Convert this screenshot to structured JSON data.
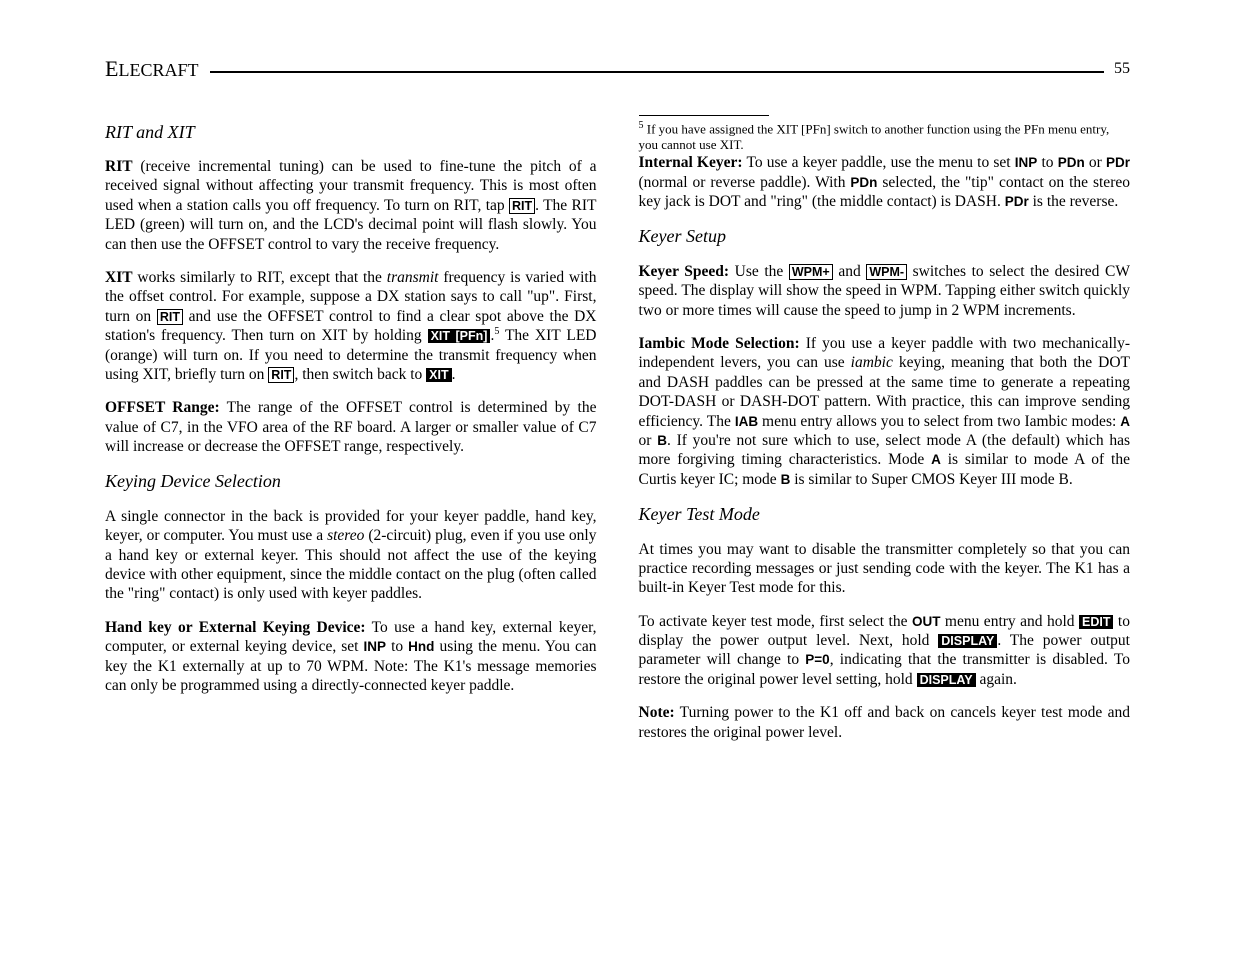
{
  "header": {
    "brand_first": "E",
    "brand_rest": "LECRAFT",
    "page": "55"
  },
  "left": {
    "title1": "RIT and XIT",
    "p1a": "RIT",
    "p1b": " (receive incremental tuning) can be used to fine-tune the pitch of a received signal without affecting your transmit frequency. This is most often used when a station calls you off frequency. To turn on RIT, tap ",
    "p1btn": "RIT",
    "p1c": ". The RIT LED (green) will turn on, and the LCD's decimal point will flash slowly. You can then use the OFFSET control to vary the receive frequency.",
    "p2a": "XIT",
    "p2b": " works similarly to RIT, except that the ",
    "p2c": "transmit",
    "p2d": " frequency is varied with the offset control. For example, suppose a DX station says to call \"up\". First, turn on ",
    "p2btn1": "RIT",
    "p2e": " and use the OFFSET control to find a clear spot above the DX station's frequency. Then turn on XIT by holding ",
    "p2btn2": "XIT [PFn]",
    "p2f": ".",
    "p2sup": "5",
    "p2g": " The XIT LED (orange) will turn on. If you need to determine the transmit frequency when using XIT, briefly turn on ",
    "p2btn3": "RIT",
    "p2h": ", then switch back to ",
    "p2btn4": "XIT",
    "p2i": ".",
    "p3a": "OFFSET Range:",
    "p3b": " The range of the OFFSET control is determined by the value of C7, in the VFO area of the RF board. A larger or smaller value of C7 will increase or decrease the OFFSET range, respectively.",
    "title2": "Keying Device Selection",
    "p4a": "A single connector in the back is provided for your keyer paddle, hand key, keyer, or computer. You must use a ",
    "p4b": "stereo",
    "p4c": " (2-circuit) plug, even if you use only a hand key or external keyer. This should not affect the use of the keying device with other equipment, since the middle contact on the plug (often called the \"ring\" contact) is only used with keyer paddles.",
    "p5a": "Hand key or External Keying Device:",
    "p5b": " To use a hand key, external keyer, computer, or external keying device, set ",
    "p5c": "INP",
    "p5d": " to ",
    "p5e": "Hnd",
    "p5f": " using the menu. You can key the K1 externally at up to 70 WPM. Note: The K1's message memories can only be programmed using a directly-connected keyer paddle.",
    "fn_sup": "5",
    "fn": " If you have assigned the XIT [PFn] switch to another function using the PFn menu entry, you cannot use XIT."
  },
  "right": {
    "p1a": "Internal Keyer:",
    "p1b": " To use a keyer paddle, use the menu to set ",
    "p1c": "INP",
    "p1d": " to ",
    "p1e": "PDn",
    "p1f": " or ",
    "p1g": "PDr",
    "p1h": " (normal or reverse paddle). With ",
    "p1i": "PDn",
    "p1j": " selected, the \"tip\" contact on the stereo key jack is DOT and \"ring\" (the middle contact) is DASH. ",
    "p1k": "PDr",
    "p1l": " is the reverse.",
    "title1": "Keyer Setup",
    "p2a": "Keyer Speed:",
    "p2b": " Use the ",
    "p2btn1": "WPM+",
    "p2c": " and ",
    "p2btn2": "WPM-",
    "p2d": " switches to select the desired CW speed. The display will show the speed in WPM. Tapping either switch quickly two or more times will cause the speed to jump in 2 WPM increments.",
    "p3a": "Iambic Mode Selection:",
    "p3b": " If you use a keyer paddle with two mechanically-independent levers, you can use ",
    "p3c": "iambic",
    "p3d": " keying, meaning that both the DOT and DASH paddles can be pressed at the same time to generate a repeating DOT-DASH or DASH-DOT pattern. With practice, this can improve sending efficiency. The ",
    "p3e": "IAB",
    "p3f": " menu entry allows you to select from two Iambic modes: ",
    "p3g": "A",
    "p3h": " or ",
    "p3i": "B",
    "p3j": ". If you're not sure which to use, select mode A (the default) which has more forgiving timing characteristics. Mode ",
    "p3k": "A",
    "p3l": " is similar to mode A of the Curtis keyer IC; mode ",
    "p3m": "B",
    "p3n": " is similar to Super CMOS Keyer III mode B.",
    "title2": "Keyer Test Mode",
    "p4": "At times you may want to disable the transmitter completely so that you can practice recording messages or just sending code with the keyer. The K1 has a built-in Keyer Test mode for this.",
    "p5a": "To activate keyer test mode, first select the ",
    "p5b": "OUT",
    "p5c": " menu entry and hold ",
    "p5btn1": "EDIT",
    "p5d": " to display the power output level. Next, hold ",
    "p5btn2": "DISPLAY",
    "p5e": ". The power output parameter will change to ",
    "p5f": "P=0",
    "p5g": ", indicating that the transmitter is disabled. To restore the original power level setting, hold ",
    "p5btn3": "DISPLAY",
    "p5h": " again.",
    "p6a": "Note:",
    "p6b": " Turning power to the K1 off and back on cancels keyer test mode and restores the original power level."
  }
}
